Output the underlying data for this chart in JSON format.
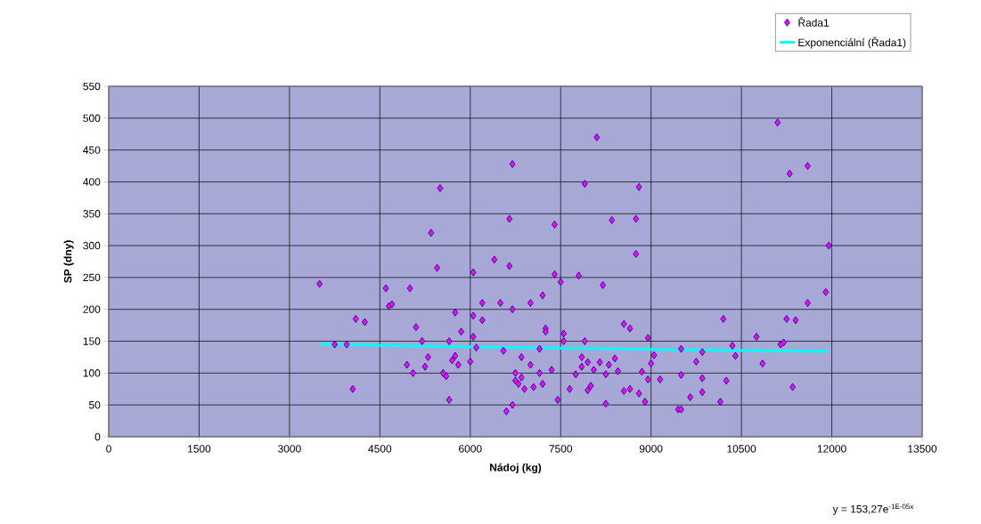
{
  "chart_data": {
    "type": "scatter",
    "xlabel": "Nádoj (kg)",
    "ylabel": "SP (dny)",
    "xlim": [
      0,
      13500
    ],
    "xticks": [
      0,
      1500,
      3000,
      4500,
      6000,
      7500,
      9000,
      10500,
      12000,
      13500
    ],
    "ylim": [
      0,
      550
    ],
    "yticks": [
      0,
      50,
      100,
      150,
      200,
      250,
      300,
      350,
      400,
      450,
      500,
      550
    ],
    "grid": true,
    "legend": "top right",
    "annotations": [
      "y = 153,27e$^{-1E-05x}$"
    ],
    "series": [
      {
        "name": "Řada1",
        "marker": "diamond",
        "color": "#ff00ff",
        "x": [
          3500,
          3750,
          3950,
          4050,
          4100,
          4250,
          4600,
          4650,
          4700,
          4950,
          5000,
          5050,
          5100,
          5200,
          5300,
          5250,
          5350,
          5450,
          5500,
          5550,
          5600,
          5650,
          5700,
          5650,
          5750,
          5750,
          5800,
          5850,
          6000,
          6050,
          6050,
          6050,
          6100,
          6200,
          6200,
          6400,
          6500,
          6550,
          6600,
          6650,
          6650,
          6700,
          6700,
          6700,
          6750,
          6750,
          6800,
          6850,
          6850,
          6900,
          7000,
          7000,
          7050,
          7150,
          7150,
          7200,
          7250,
          7250,
          7200,
          7350,
          7400,
          7400,
          7450,
          7500,
          7550,
          7550,
          7650,
          7750,
          7800,
          7850,
          7850,
          7900,
          7900,
          7950,
          7950,
          8000,
          8050,
          8100,
          8150,
          8200,
          8250,
          8250,
          8300,
          8350,
          8400,
          8450,
          8550,
          8550,
          8650,
          8650,
          8750,
          8750,
          8800,
          8800,
          8850,
          8900,
          8950,
          8950,
          9000,
          9050,
          9150,
          9450,
          9500,
          9500,
          9500,
          9650,
          9750,
          9850,
          9850,
          9850,
          10150,
          10200,
          10250,
          10350,
          10400,
          10750,
          10850,
          11100,
          11150,
          11200,
          11250,
          11300,
          11350,
          11400,
          11600,
          11600,
          11900,
          11950
        ],
        "values": [
          240,
          145,
          145,
          75,
          185,
          180,
          233,
          205,
          208,
          113,
          233,
          100,
          172,
          150,
          125,
          110,
          320,
          265,
          390,
          100,
          95,
          150,
          120,
          58,
          127,
          195,
          113,
          165,
          118,
          258,
          190,
          157,
          140,
          210,
          183,
          278,
          210,
          135,
          40,
          342,
          268,
          428,
          50,
          200,
          100,
          88,
          83,
          125,
          93,
          75,
          113,
          210,
          78,
          100,
          138,
          222,
          170,
          165,
          83,
          105,
          333,
          255,
          58,
          243,
          162,
          150,
          75,
          98,
          253,
          125,
          110,
          397,
          150,
          117,
          73,
          80,
          105,
          470,
          117,
          238,
          52,
          98,
          113,
          340,
          123,
          103,
          177,
          72,
          75,
          170,
          342,
          287,
          392,
          68,
          102,
          55,
          90,
          155,
          115,
          128,
          90,
          43,
          43,
          97,
          138,
          62,
          118,
          133,
          92,
          70,
          55,
          185,
          88,
          143,
          127,
          157,
          115,
          493,
          145,
          148,
          185,
          413,
          78,
          183,
          425,
          210,
          227,
          300
        ]
      },
      {
        "name": "Exponenciální (Řada1)",
        "type": "line",
        "marker": "none",
        "line_style": "solid",
        "color": "#00ffff",
        "x": [
          3500,
          6000,
          9000,
          11950
        ],
        "values": [
          145,
          141,
          137,
          134
        ]
      }
    ]
  }
}
